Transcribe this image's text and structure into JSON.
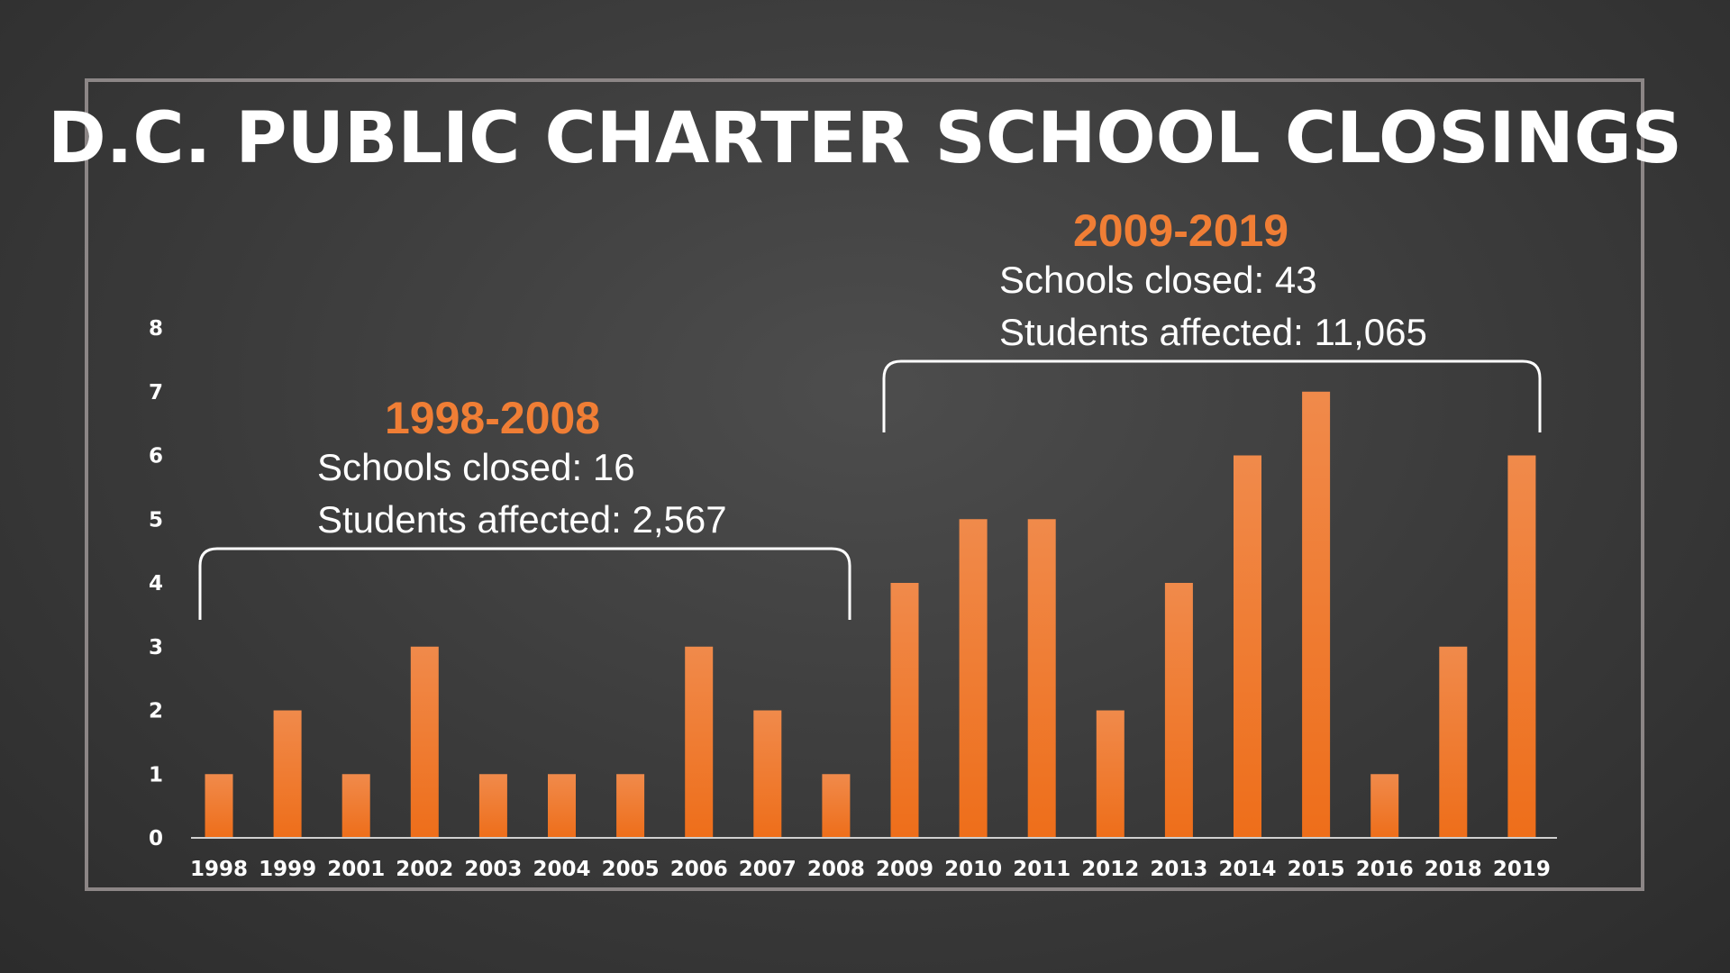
{
  "title": "D.C. PUBLIC CHARTER SCHOOL CLOSINGS",
  "annotations": [
    {
      "period": "1998-2008",
      "schools_closed": "Schools closed: 16",
      "students_affected": "Students affected: 2,567"
    },
    {
      "period": "2009-2019",
      "schools_closed": "Schools closed: 43",
      "students_affected": "Students affected: 11,065"
    }
  ],
  "chart_data": {
    "type": "bar",
    "title": "D.C. PUBLIC CHARTER SCHOOL CLOSINGS",
    "xlabel": "",
    "ylabel": "",
    "categories": [
      "1998",
      "1999",
      "2001",
      "2002",
      "2003",
      "2004",
      "2005",
      "2006",
      "2007",
      "2008",
      "2009",
      "2010",
      "2011",
      "2012",
      "2013",
      "2014",
      "2015",
      "2016",
      "2018",
      "2019"
    ],
    "values": [
      1,
      2,
      1,
      3,
      1,
      1,
      1,
      3,
      2,
      1,
      4,
      5,
      5,
      2,
      4,
      6,
      7,
      1,
      3,
      6
    ],
    "yticks": [
      "0",
      "1",
      "2",
      "3",
      "4",
      "5",
      "6",
      "7",
      "8"
    ],
    "ylim": [
      0,
      8
    ],
    "grid": false,
    "legend": "none",
    "bar_color_top": "#f08a4b",
    "bar_color_bottom": "#ee6e1a",
    "axis_color": "#d0d0d0"
  },
  "colors": {
    "accent": "#f07e35",
    "text": "#ffffff",
    "frame": "#8c8686"
  }
}
